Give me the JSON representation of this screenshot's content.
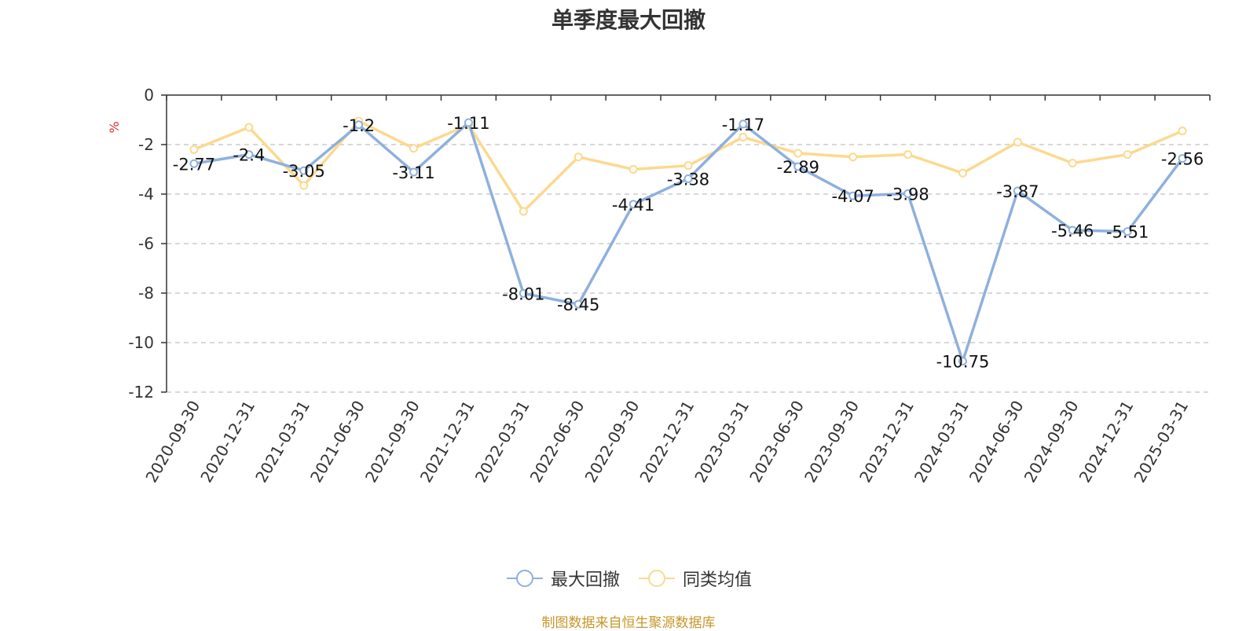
{
  "chart_data": {
    "type": "line",
    "title": "单季度最大回撤",
    "ylabel": "%",
    "ylim": [
      -12,
      0
    ],
    "yticks": [
      0,
      -2,
      -4,
      -6,
      -8,
      -10,
      -12
    ],
    "grid": "horizontal dashed",
    "legend_position": "bottom",
    "categories": [
      "2020-09-30",
      "2020-12-31",
      "2021-03-31",
      "2021-06-30",
      "2021-09-30",
      "2021-12-31",
      "2022-03-31",
      "2022-06-30",
      "2022-09-30",
      "2022-12-31",
      "2023-03-31",
      "2023-06-30",
      "2023-09-30",
      "2023-12-31",
      "2024-03-31",
      "2024-06-30",
      "2024-09-30",
      "2024-12-31",
      "2025-03-31"
    ],
    "series": [
      {
        "name": "最大回撤",
        "color": "#8eb0dd",
        "labels": true,
        "values": [
          -2.77,
          -2.4,
          -3.05,
          -1.2,
          -3.11,
          -1.11,
          -8.01,
          -8.45,
          -4.41,
          -3.38,
          -1.17,
          -2.89,
          -4.07,
          -3.98,
          -10.75,
          -3.87,
          -5.46,
          -5.51,
          -2.56
        ]
      },
      {
        "name": "同类均值",
        "color": "#fcd98f",
        "labels": false,
        "values": [
          -2.2,
          -1.3,
          -3.65,
          -1.05,
          -2.15,
          -1.2,
          -4.7,
          -2.5,
          -3.0,
          -2.85,
          -1.7,
          -2.35,
          -2.5,
          -2.4,
          -3.15,
          -1.9,
          -2.75,
          -2.4,
          -1.45
        ]
      }
    ]
  },
  "source_text": "制图数据来自恒生聚源数据库",
  "colors": {
    "unit_label": "#e03030",
    "source_text": "#c8962a",
    "axis": "#333333",
    "grid": "#cccccc"
  }
}
